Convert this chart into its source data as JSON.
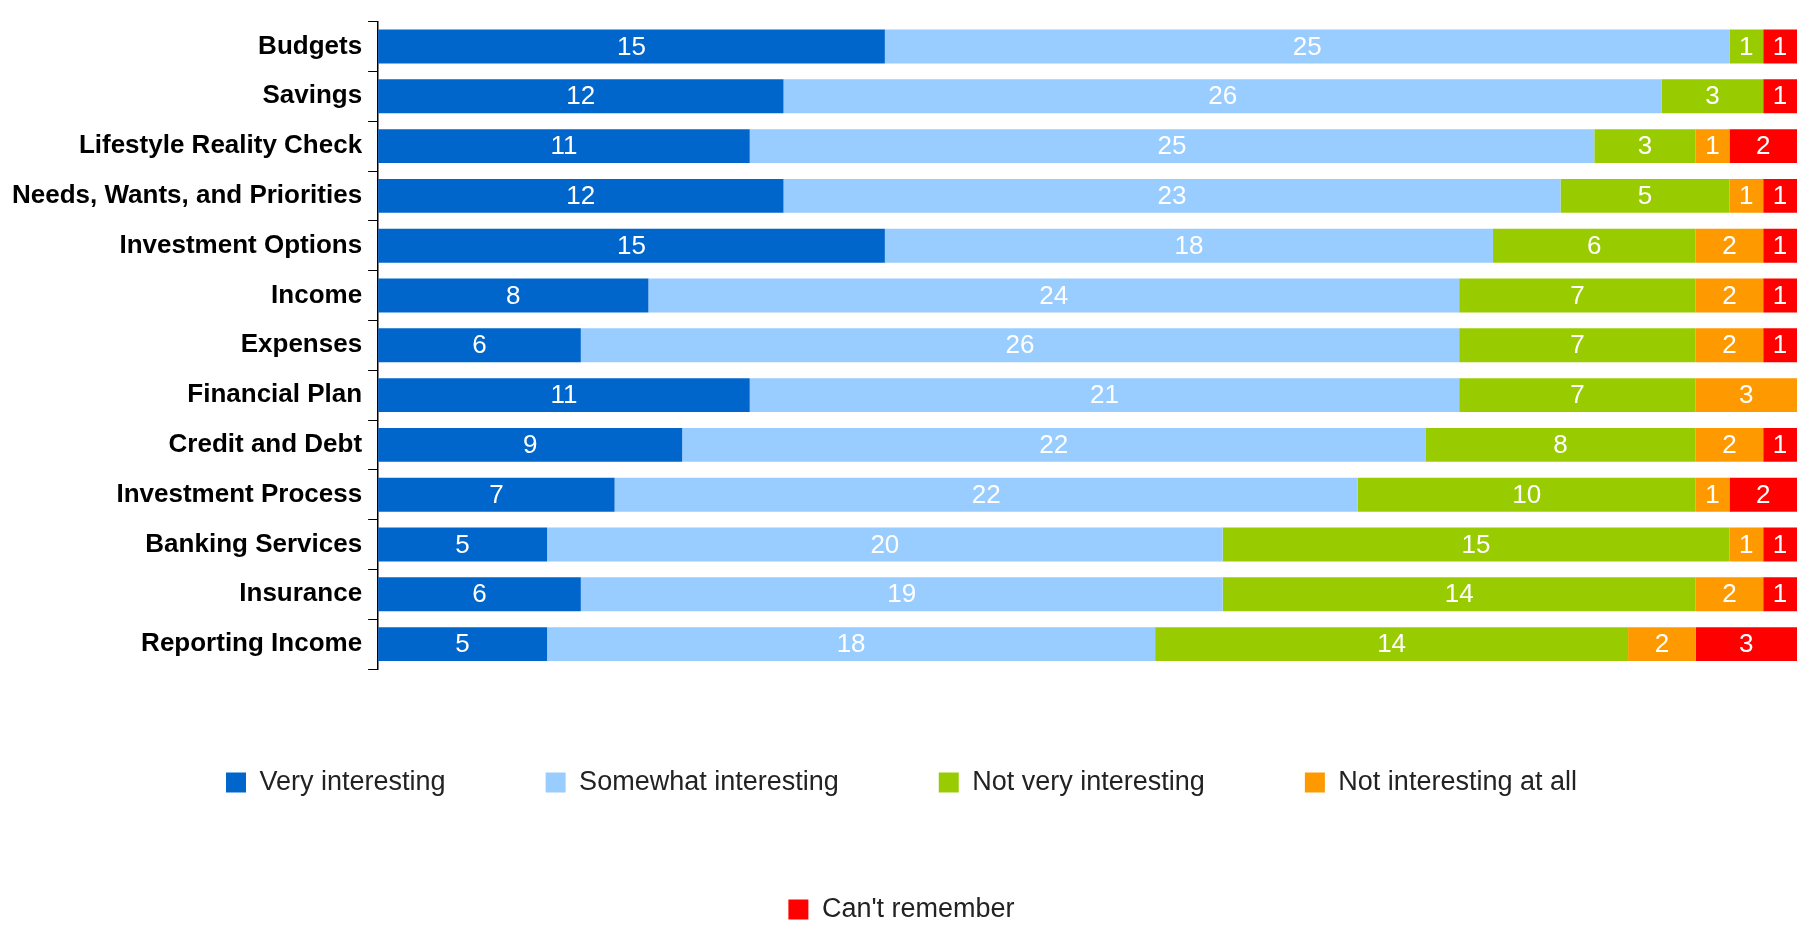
{
  "chart_data": {
    "type": "bar",
    "orientation": "horizontal",
    "stacked": true,
    "data_labels": true,
    "legend": "bottom",
    "grid": false,
    "tick_labels": "y",
    "xlim": [
      0,
      42
    ],
    "categories": [
      "Budgets",
      "Savings",
      "Lifestyle Reality Check",
      "Needs, Wants, and Priorities",
      "Investment Options",
      "Income",
      "Expenses",
      "Financial Plan",
      "Credit and Debt",
      "Investment Process",
      "Banking Services",
      "Insurance",
      "Reporting Income"
    ],
    "series": [
      {
        "name": "Very interesting",
        "color": "#0066cc",
        "values": [
          15,
          12,
          11,
          12,
          15,
          8,
          6,
          11,
          9,
          7,
          5,
          6,
          5
        ]
      },
      {
        "name": "Somewhat interesting",
        "color": "#99ccff",
        "values": [
          25,
          26,
          25,
          23,
          18,
          24,
          26,
          21,
          22,
          22,
          20,
          19,
          18
        ]
      },
      {
        "name": "Not very interesting",
        "color": "#99cc00",
        "values": [
          1,
          3,
          3,
          5,
          6,
          7,
          7,
          7,
          8,
          10,
          15,
          14,
          14
        ]
      },
      {
        "name": "Not interesting at all",
        "color": "#ff9900",
        "values": [
          null,
          null,
          1,
          1,
          2,
          2,
          2,
          3,
          2,
          1,
          1,
          2,
          2
        ]
      },
      {
        "name": "Can't remember",
        "color": "#ff0000",
        "values": [
          1,
          1,
          2,
          1,
          1,
          1,
          1,
          null,
          1,
          2,
          1,
          1,
          3
        ]
      }
    ]
  }
}
